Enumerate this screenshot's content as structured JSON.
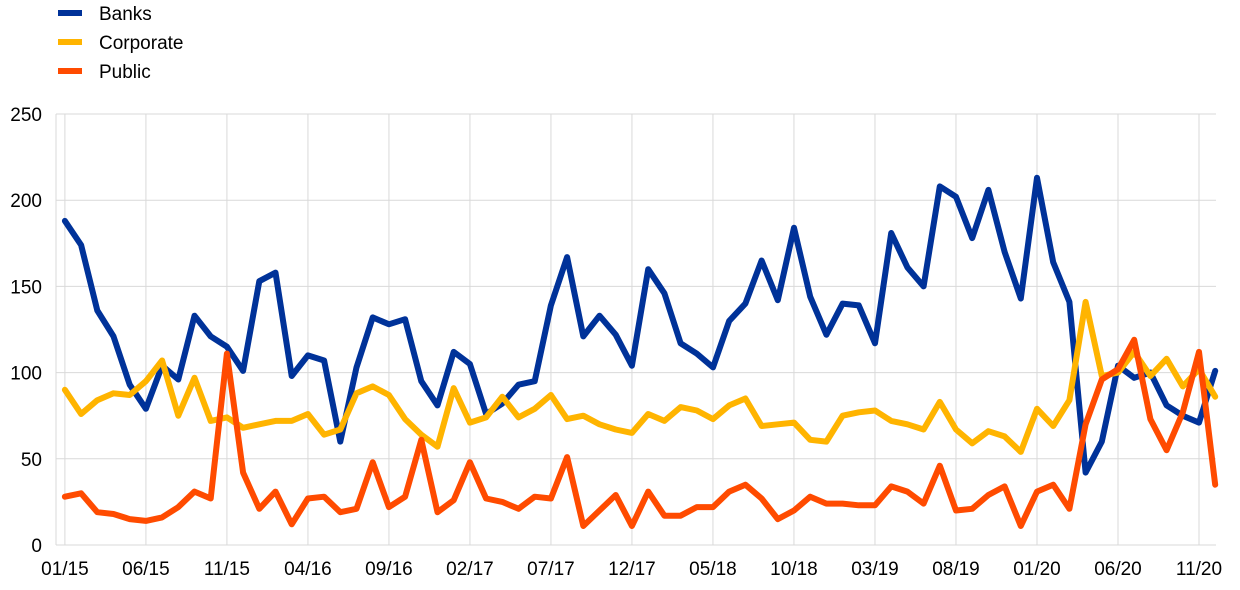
{
  "chart_data": {
    "type": "line",
    "title": "",
    "xlabel": "",
    "ylabel": "",
    "ylim": [
      0,
      250
    ],
    "yticks": [
      0,
      50,
      100,
      150,
      200,
      250
    ],
    "grid": true,
    "legend_position": "top-left",
    "x": [
      "01/15",
      "02/15",
      "03/15",
      "04/15",
      "05/15",
      "06/15",
      "07/15",
      "08/15",
      "09/15",
      "10/15",
      "11/15",
      "12/15",
      "01/16",
      "02/16",
      "03/16",
      "04/16",
      "05/16",
      "06/16",
      "07/16",
      "08/16",
      "09/16",
      "10/16",
      "11/16",
      "12/16",
      "01/17",
      "02/17",
      "03/17",
      "04/17",
      "05/17",
      "06/17",
      "07/17",
      "08/17",
      "09/17",
      "10/17",
      "11/17",
      "12/17",
      "01/18",
      "02/18",
      "03/18",
      "04/18",
      "05/18",
      "06/18",
      "07/18",
      "08/18",
      "09/18",
      "10/18",
      "11/18",
      "12/18",
      "01/19",
      "02/19",
      "03/19",
      "04/19",
      "05/19",
      "06/19",
      "07/19",
      "08/19",
      "09/19",
      "10/19",
      "11/19",
      "12/19",
      "01/20",
      "02/20",
      "03/20",
      "04/20",
      "05/20",
      "06/20",
      "07/20",
      "08/20",
      "09/20",
      "10/20",
      "11/20",
      "12/20"
    ],
    "xtick_labels": [
      "01/15",
      "06/15",
      "11/15",
      "04/16",
      "09/16",
      "02/17",
      "07/17",
      "12/17",
      "05/18",
      "10/18",
      "03/19",
      "08/19",
      "01/20",
      "06/20",
      "11/20"
    ],
    "series": [
      {
        "name": "Banks",
        "color": "#003299",
        "values": [
          188,
          174,
          136,
          121,
          93,
          79,
          104,
          96,
          133,
          121,
          115,
          101,
          153,
          158,
          98,
          110,
          107,
          60,
          103,
          132,
          128,
          131,
          95,
          81,
          112,
          105,
          76,
          82,
          93,
          95,
          139,
          167,
          121,
          133,
          122,
          104,
          160,
          146,
          117,
          111,
          103,
          130,
          140,
          165,
          142,
          184,
          144,
          122,
          140,
          139,
          117,
          181,
          161,
          150,
          208,
          202,
          178,
          206,
          170,
          143,
          213,
          164,
          141,
          42,
          60,
          104,
          97,
          100,
          81,
          75,
          71,
          101
        ]
      },
      {
        "name": "Corporate",
        "color": "#ffb400",
        "values": [
          90,
          76,
          84,
          88,
          87,
          95,
          107,
          75,
          97,
          72,
          74,
          68,
          70,
          72,
          72,
          76,
          64,
          67,
          88,
          92,
          87,
          73,
          64,
          57,
          91,
          71,
          74,
          86,
          74,
          79,
          87,
          73,
          75,
          70,
          67,
          65,
          76,
          72,
          80,
          78,
          73,
          81,
          85,
          69,
          70,
          71,
          61,
          60,
          75,
          77,
          78,
          72,
          70,
          67,
          83,
          67,
          59,
          66,
          63,
          54,
          79,
          69,
          84,
          141,
          98,
          100,
          112,
          98,
          108,
          92,
          102,
          86
        ]
      },
      {
        "name": "Public",
        "color": "#ff4b00",
        "values": [
          28,
          30,
          19,
          18,
          15,
          14,
          16,
          22,
          31,
          27,
          111,
          42,
          21,
          31,
          12,
          27,
          28,
          19,
          21,
          48,
          22,
          28,
          61,
          19,
          26,
          48,
          27,
          25,
          21,
          28,
          27,
          51,
          11,
          20,
          29,
          11,
          31,
          17,
          17,
          22,
          22,
          31,
          35,
          27,
          15,
          20,
          28,
          24,
          24,
          23,
          23,
          34,
          31,
          24,
          46,
          20,
          21,
          29,
          34,
          11,
          31,
          35,
          21,
          70,
          96,
          102,
          119,
          73,
          55,
          77,
          112,
          35
        ]
      }
    ]
  }
}
